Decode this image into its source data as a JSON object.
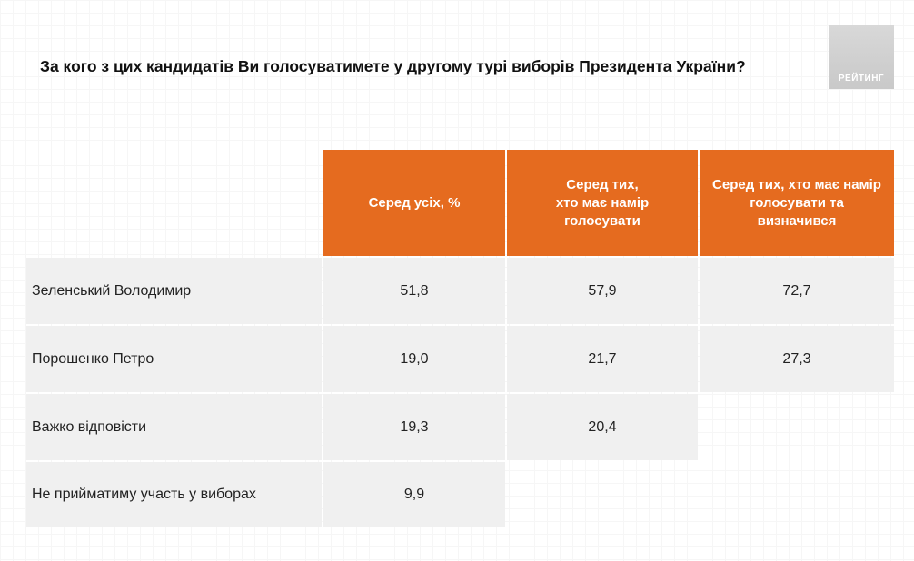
{
  "title": "За кого з цих кандидатів Ви голосуватимете у другому турі виборів Президента України?",
  "logo_text": "РЕЙТИНГ",
  "colors": {
    "header_bg": "#e56b1f",
    "cell_bg": "#f0f0f0"
  },
  "chart_data": {
    "type": "table",
    "title": "За кого з цих кандидатів Ви голосуватимете у другому турі виборів Президента України?",
    "columns": [
      "Серед усіх, %",
      "Серед тих,\nхто має намір\nголосувати",
      "Серед тих, хто має намір\nголосувати та\nвизначився"
    ],
    "rows": [
      {
        "label": "Зеленський Володимир",
        "values": [
          "51,8",
          "57,9",
          "72,7"
        ]
      },
      {
        "label": "Порошенко Петро",
        "values": [
          "19,0",
          "21,7",
          "27,3"
        ]
      },
      {
        "label": "Важко відповісти",
        "values": [
          "19,3",
          "20,4",
          ""
        ]
      },
      {
        "label": "Не прийматиму участь у виборах",
        "values": [
          "9,9",
          "",
          ""
        ]
      }
    ]
  }
}
